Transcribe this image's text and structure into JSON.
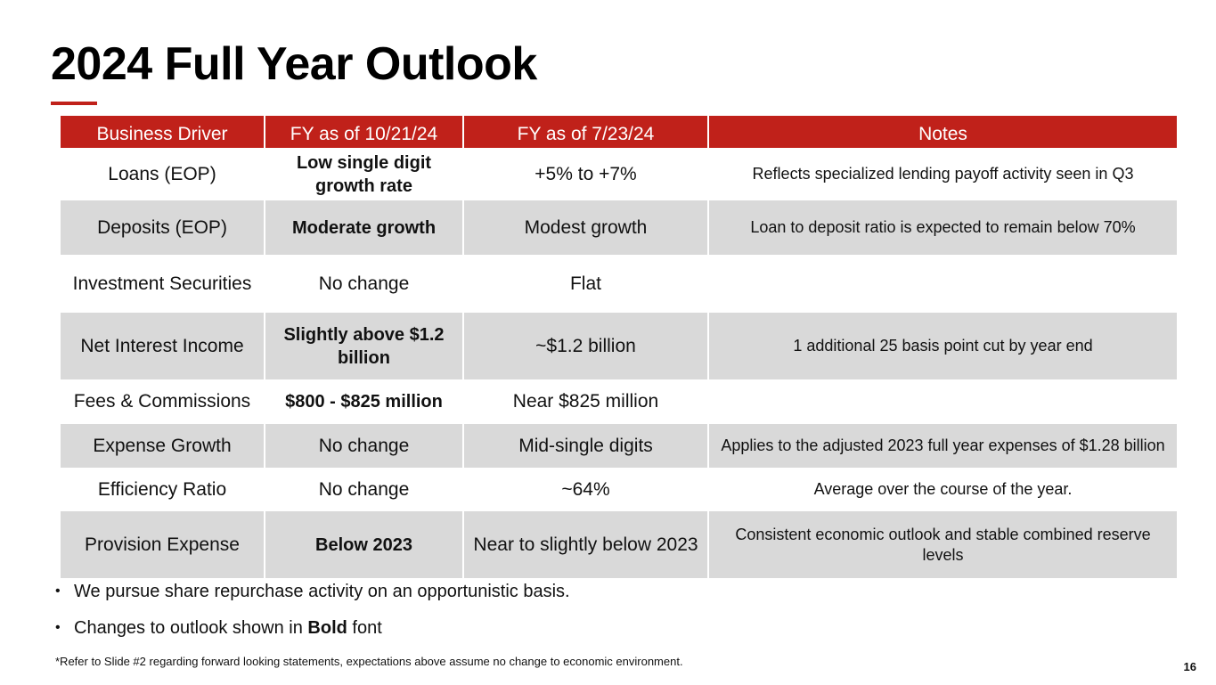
{
  "slide": {
    "title": "2024 Full Year Outlook",
    "accent_color": "#c0211a",
    "page_number": "16"
  },
  "table": {
    "headers": [
      "Business Driver",
      "FY as of 10/21/24",
      "FY as of 7/23/24",
      "Notes"
    ],
    "rows": [
      {
        "driver": "Loans (EOP)",
        "current": "Low single digit growth rate",
        "prior": "+5% to +7%",
        "notes": "Reflects specialized lending payoff activity seen in Q3",
        "current_bold": true
      },
      {
        "driver": "Deposits (EOP)",
        "current": "Moderate growth",
        "prior": "Modest growth",
        "notes": "Loan to deposit ratio is expected to remain below 70%",
        "current_bold": true
      },
      {
        "driver": "Investment Securities",
        "current": "No change",
        "prior": "Flat",
        "notes": "",
        "current_bold": false
      },
      {
        "driver": "Net Interest Income",
        "current": "Slightly above $1.2 billion",
        "prior": "~$1.2 billion",
        "notes": "1 additional 25 basis point cut by year end",
        "current_bold": true
      },
      {
        "driver": "Fees & Commissions",
        "current": "$800 - $825 million",
        "prior": "Near $825 million",
        "notes": "",
        "current_bold": true
      },
      {
        "driver": "Expense Growth",
        "current": "No change",
        "prior": "Mid-single digits",
        "notes": "Applies to the adjusted 2023 full year expenses of $1.28 billion",
        "current_bold": false
      },
      {
        "driver": "Efficiency Ratio",
        "current": "No change",
        "prior": "~64%",
        "notes": "Average over the course of the year.",
        "current_bold": false
      },
      {
        "driver": "Provision Expense",
        "current": "Below 2023",
        "prior": "Near to slightly below 2023",
        "notes": "Consistent economic outlook and stable combined reserve levels",
        "current_bold": true
      }
    ]
  },
  "bullets": {
    "item1": "We pursue share repurchase activity on an opportunistic basis.",
    "item2_prefix": "Changes to outlook shown in ",
    "item2_bold": "Bold",
    "item2_suffix": " font"
  },
  "footnote": "*Refer to Slide #2 regarding forward looking statements, expectations above assume no change to economic environment."
}
